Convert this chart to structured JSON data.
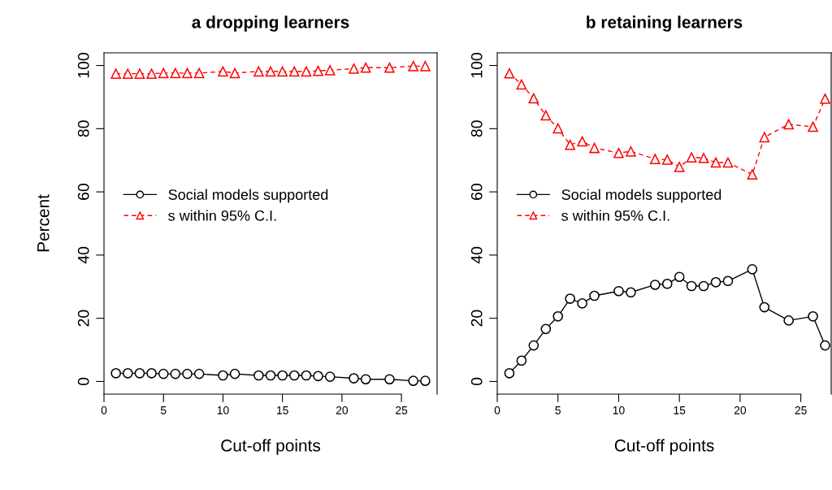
{
  "chart_data": [
    {
      "type": "line",
      "title": "a dropping learners",
      "xlabel": "Cut-off points",
      "ylabel": "Percent",
      "x": [
        1,
        2,
        3,
        4,
        5,
        6,
        7,
        8,
        10,
        11,
        13,
        14,
        15,
        16,
        17,
        18,
        19,
        21,
        22,
        24,
        26,
        27
      ],
      "series": [
        {
          "name": "Social models supported",
          "color": "#000000",
          "marker": "circle",
          "line_style": "solid",
          "values": [
            2.6,
            2.6,
            2.6,
            2.6,
            2.4,
            2.4,
            2.4,
            2.4,
            1.9,
            2.4,
            1.9,
            1.9,
            1.9,
            1.9,
            1.9,
            1.7,
            1.5,
            1.0,
            0.7,
            0.7,
            0.2,
            0.2
          ]
        },
        {
          "name": "s within 95% C.I.",
          "color": "#ff0000",
          "marker": "triangle",
          "line_style": "dashed",
          "values": [
            97.4,
            97.4,
            97.4,
            97.4,
            97.6,
            97.6,
            97.6,
            97.6,
            98.1,
            97.6,
            98.1,
            98.1,
            98.1,
            98.1,
            98.1,
            98.3,
            98.5,
            99.0,
            99.3,
            99.3,
            99.8,
            99.8
          ]
        }
      ],
      "xlim": [
        0,
        28
      ],
      "xticks": [
        0,
        5,
        10,
        15,
        20,
        25
      ],
      "ylim": [
        -4,
        104
      ],
      "yticks": [
        0,
        20,
        40,
        60,
        80,
        100
      ],
      "legend": "left",
      "grid": false
    },
    {
      "type": "line",
      "title": "b retaining learners",
      "xlabel": "Cut-off points",
      "x": [
        1,
        2,
        3,
        4,
        5,
        6,
        7,
        8,
        10,
        11,
        13,
        14,
        15,
        16,
        17,
        18,
        19,
        21,
        22,
        24,
        26,
        27
      ],
      "series": [
        {
          "name": "Social models supported",
          "color": "#000000",
          "marker": "circle",
          "line_style": "solid",
          "values": [
            2.6,
            6.6,
            11.4,
            16.6,
            20.6,
            26.2,
            24.7,
            27.1,
            28.6,
            28.2,
            30.6,
            30.9,
            33.1,
            30.2,
            30.2,
            31.4,
            31.8,
            35.5,
            23.5,
            19.3,
            20.6,
            11.4
          ]
        },
        {
          "name": "s within 95% C.I.",
          "color": "#ff0000",
          "marker": "triangle",
          "line_style": "dashed",
          "values": [
            97.5,
            94.0,
            89.6,
            84.2,
            80.1,
            74.9,
            76.0,
            73.9,
            72.3,
            72.8,
            70.4,
            70.2,
            67.9,
            70.9,
            70.7,
            69.3,
            69.3,
            65.5,
            77.3,
            81.4,
            80.6,
            89.5
          ]
        }
      ],
      "xlim": [
        0,
        27.5
      ],
      "xticks": [
        0,
        5,
        10,
        15,
        20,
        25
      ],
      "ylim": [
        -4,
        104
      ],
      "yticks": [
        0,
        20,
        40,
        60,
        80,
        100
      ],
      "legend": "left",
      "grid": false
    }
  ]
}
